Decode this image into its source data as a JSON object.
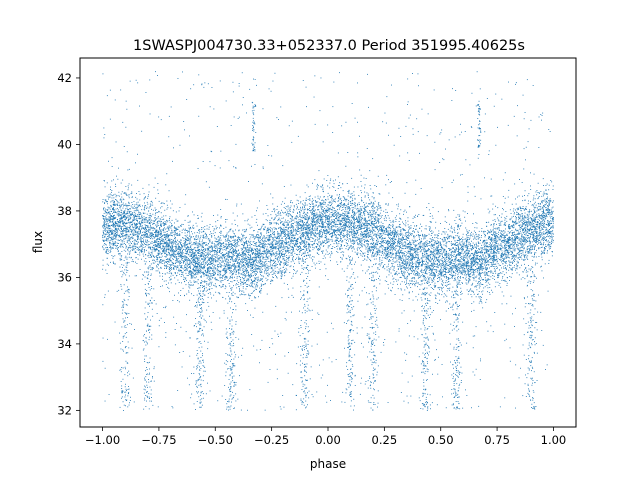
{
  "chart_data": {
    "type": "scatter",
    "title": "1SWASPJ004730.33+052337.0 Period 351995.40625s",
    "xlabel": "phase",
    "ylabel": "flux",
    "xlim": [
      -1.1,
      1.1
    ],
    "ylim": [
      31.5,
      42.6
    ],
    "xticks": [
      -1.0,
      -0.75,
      -0.5,
      -0.25,
      0.0,
      0.25,
      0.5,
      0.75,
      1.0
    ],
    "xtick_labels": [
      "−1.00",
      "−0.75",
      "−0.50",
      "−0.25",
      "0.00",
      "0.25",
      "0.50",
      "0.75",
      "1.00"
    ],
    "yticks": [
      32,
      34,
      36,
      38,
      40,
      42
    ],
    "ytick_labels": [
      "32",
      "34",
      "36",
      "38",
      "40",
      "42"
    ],
    "grid": false,
    "legend": "none",
    "point_color": "#1f77b4",
    "series": [
      {
        "x_range": [
          -1.0,
          1.0
        ],
        "profile": [
          {
            "x": -1.0,
            "y": 37.5
          },
          {
            "x": -0.9,
            "y": 37.6
          },
          {
            "x": -0.8,
            "y": 37.4
          },
          {
            "x": -0.7,
            "y": 36.9
          },
          {
            "x": -0.6,
            "y": 36.6
          },
          {
            "x": -0.5,
            "y": 36.5
          },
          {
            "x": -0.4,
            "y": 36.6
          },
          {
            "x": -0.33,
            "y": 36.4
          },
          {
            "x": -0.25,
            "y": 36.9
          },
          {
            "x": -0.15,
            "y": 37.2
          },
          {
            "x": -0.05,
            "y": 37.6
          },
          {
            "x": 0.0,
            "y": 37.7
          },
          {
            "x": 0.1,
            "y": 37.6
          },
          {
            "x": 0.2,
            "y": 37.4
          },
          {
            "x": 0.3,
            "y": 36.9
          },
          {
            "x": 0.4,
            "y": 36.6
          },
          {
            "x": 0.5,
            "y": 36.5
          },
          {
            "x": 0.6,
            "y": 36.6
          },
          {
            "x": 0.67,
            "y": 36.4
          },
          {
            "x": 0.75,
            "y": 36.9
          },
          {
            "x": 0.85,
            "y": 37.2
          },
          {
            "x": 0.95,
            "y": 37.6
          },
          {
            "x": 1.0,
            "y": 37.7
          }
        ],
        "scatter_sigma": 0.5,
        "dip_phases": [
          -0.9,
          -0.8,
          -0.57,
          -0.43,
          -0.1,
          0.1,
          0.2,
          0.43,
          0.57,
          0.9
        ],
        "dip_min": 32.0,
        "spike_phases": [
          -0.33,
          0.67
        ],
        "spike_max": 41.3,
        "outlier_range": [
          32.0,
          42.2
        ]
      }
    ]
  }
}
